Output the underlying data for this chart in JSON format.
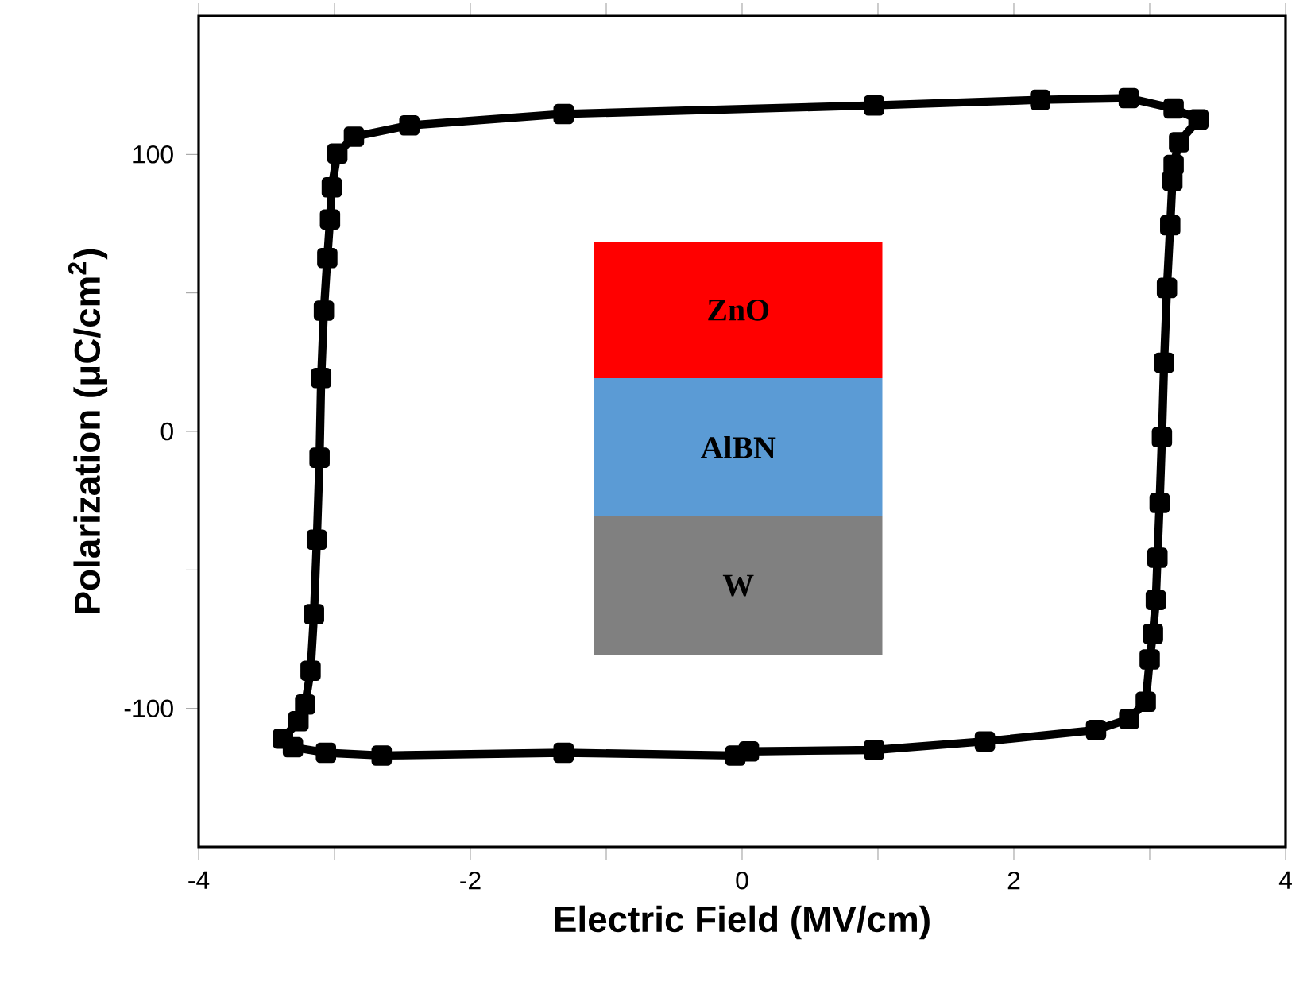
{
  "chart_data": {
    "type": "line",
    "xlabel": "Electric Field (MV/cm)",
    "ylabel": "Polarization (μC/cm$^{2}$)",
    "x": [
      -3.379,
      -3.265,
      -3.216,
      -3.176,
      -3.151,
      -3.13,
      -3.11,
      -3.098,
      -3.078,
      -3.053,
      -3.033,
      -3.02,
      -2.979,
      -2.857,
      -2.449,
      -1.314,
      0.971,
      2.194,
      2.846,
      3.176,
      3.359,
      3.216,
      3.176,
      3.167,
      3.151,
      3.127,
      3.106,
      3.09,
      3.073,
      3.057,
      3.045,
      3.024,
      3.0,
      2.971,
      2.849,
      2.605,
      1.787,
      0.971,
      0.05,
      -0.05,
      -1.314,
      -2.653,
      -3.063,
      -3.306
    ],
    "series": [
      {
        "color": "#000000",
        "values": [
          -110.9,
          -104.6,
          -98.6,
          -86.4,
          -66.0,
          -39.1,
          -9.5,
          19.3,
          43.6,
          62.6,
          76.5,
          88.1,
          100.3,
          106.4,
          110.5,
          114.6,
          117.7,
          119.7,
          120.3,
          116.6,
          112.6,
          104.4,
          96.2,
          90.5,
          74.4,
          51.8,
          24.8,
          -2.1,
          -25.8,
          -45.6,
          -60.9,
          -73.1,
          -82.3,
          -97.6,
          -103.8,
          -107.8,
          -111.9,
          -115.0,
          -115.5,
          -117.0,
          -116.0,
          -117.0,
          -116.0,
          -114.0
        ]
      }
    ],
    "marker": "square",
    "line_style": "solid",
    "xlim": [
      -4,
      4
    ],
    "ylim": [
      -150,
      150
    ],
    "xticks": [
      -4,
      {
        "value": -3,
        "label": null
      },
      -2,
      {
        "value": -1,
        "label": null
      },
      0,
      {
        "value": 1,
        "label": null
      },
      2,
      {
        "value": 3,
        "label": null
      },
      4
    ],
    "yticks": [
      -100,
      {
        "value": -50,
        "label": null
      },
      0,
      {
        "value": 50,
        "label": null
      },
      100
    ],
    "annotations": [
      "ZnO",
      "AlBN",
      "W"
    ]
  }
}
